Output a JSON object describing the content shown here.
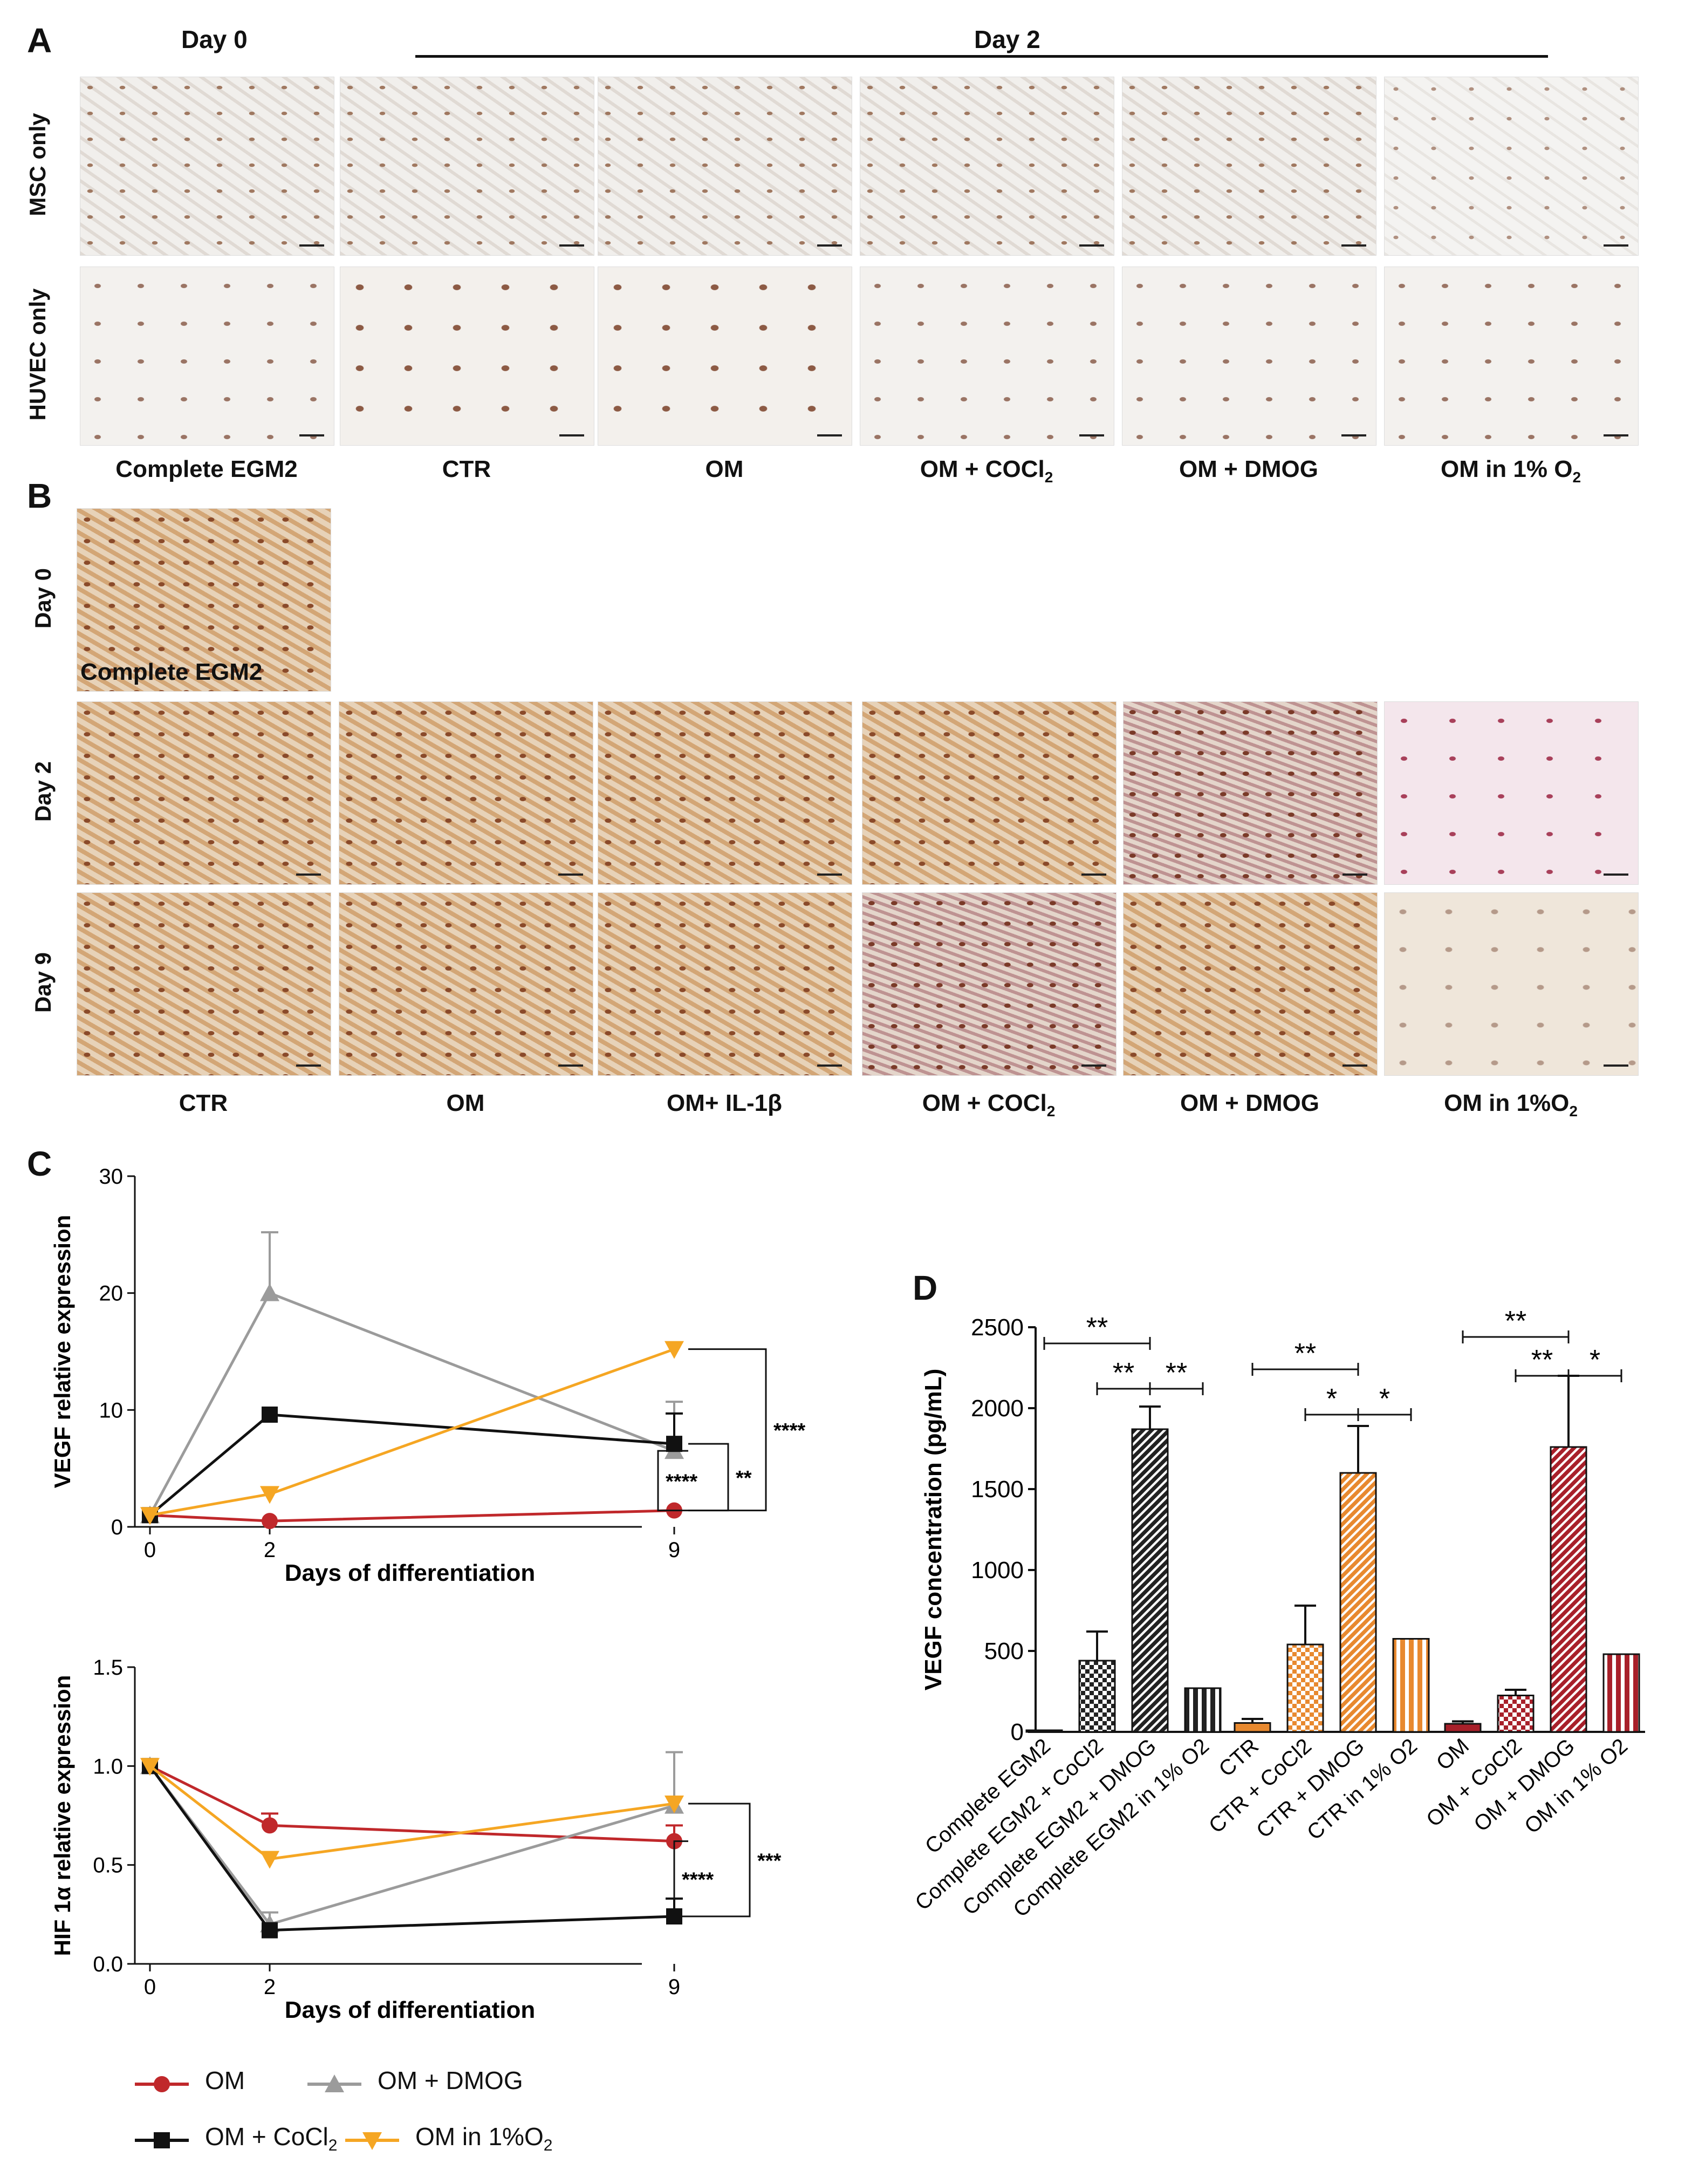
{
  "panel_a": {
    "label": "A",
    "day0_header": "Day 0",
    "day2_header": "Day 2",
    "rows": [
      "MSC only",
      "HUVEC only"
    ],
    "columns": [
      "Complete EGM2",
      "CTR",
      "OM",
      "OM + COCl",
      "OM + DMOG",
      "OM in 1% O"
    ],
    "col_subscripts": [
      "",
      "",
      "",
      "2",
      "",
      "2"
    ]
  },
  "panel_b": {
    "label": "B",
    "rows": [
      "Day 0",
      "Day 2",
      "Day 9"
    ],
    "day0_overlay": "Complete EGM2",
    "columns": [
      "CTR",
      "OM",
      "OM+ IL-1β",
      "OM + COCl",
      "OM + DMOG",
      "OM in 1%O"
    ],
    "col_subscripts": [
      "",
      "",
      "",
      "2",
      "",
      "2"
    ]
  },
  "colors": {
    "OM": "#c0282b",
    "OM + DMOG": "#9b9b9b",
    "OM + CoCl2": "#111111",
    "OM in 1%O2": "#f5a623"
  },
  "chart_data": [
    {
      "panel": "C",
      "type": "line",
      "xlabel": "Days  of  differentiation",
      "ylabel": "VEGF  relative  expression",
      "x": [
        0,
        2,
        9
      ],
      "ylim": [
        0,
        30
      ],
      "yticks": [
        0,
        10,
        20,
        30
      ],
      "series": [
        {
          "name": "OM",
          "values": [
            1.0,
            0.5,
            1.4
          ],
          "errors": [
            0,
            0,
            0
          ]
        },
        {
          "name": "OM + DMOG",
          "values": [
            1.0,
            20.0,
            6.5
          ],
          "errors": [
            0,
            5.2,
            4.2
          ]
        },
        {
          "name": "OM + CoCl2",
          "values": [
            1.0,
            9.6,
            7.1
          ],
          "errors": [
            0,
            0,
            2.6
          ]
        },
        {
          "name": "OM in 1%O2",
          "values": [
            1.0,
            2.8,
            15.2
          ],
          "errors": [
            0,
            0,
            0
          ]
        }
      ],
      "significance": [
        "****",
        "**",
        "****"
      ]
    },
    {
      "panel": "C",
      "type": "line",
      "xlabel": "Days  of  differentiation",
      "ylabel": "HIF 1α  relative  expression",
      "x": [
        0,
        2,
        9
      ],
      "ylim": [
        0,
        1.5
      ],
      "yticks": [
        0.0,
        0.5,
        1.0,
        1.5
      ],
      "series": [
        {
          "name": "OM",
          "values": [
            1.0,
            0.7,
            0.62
          ],
          "errors": [
            0,
            0.06,
            0.08
          ]
        },
        {
          "name": "OM + DMOG",
          "values": [
            1.0,
            0.2,
            0.8
          ],
          "errors": [
            0,
            0.06,
            0.27
          ]
        },
        {
          "name": "OM + CoCl2",
          "values": [
            1.0,
            0.17,
            0.24
          ],
          "errors": [
            0,
            0,
            0.09
          ]
        },
        {
          "name": "OM in 1%O2",
          "values": [
            1.0,
            0.53,
            0.81
          ],
          "errors": [
            0,
            0,
            0
          ]
        }
      ],
      "significance": [
        "****",
        "***"
      ]
    },
    {
      "panel": "D",
      "type": "bar",
      "ylabel": "VEGF concentration  (pg/mL)",
      "ylim": [
        0,
        2500
      ],
      "yticks": [
        0,
        500,
        1000,
        1500,
        2000,
        2500
      ],
      "categories": [
        "Complete EGM2",
        "Complete EGM2 + CoCl2",
        "Complete EGM2 + DMOG",
        "Complete EGM2 in 1% O2",
        "CTR",
        "CTR + CoCl2",
        "CTR + DMOG",
        "CTR in 1% O2",
        "OM",
        "OM + CoCl2",
        "OM + DMOG",
        "OM in 1% O2"
      ],
      "values": [
        10,
        440,
        1870,
        270,
        55,
        540,
        1600,
        575,
        50,
        225,
        1760,
        480
      ],
      "errors": [
        0,
        180,
        140,
        0,
        25,
        240,
        290,
        0,
        15,
        35,
        440,
        0
      ],
      "significance": [
        "**",
        "**",
        "**",
        "**",
        "*",
        "*",
        "**",
        "**",
        "*"
      ]
    }
  ],
  "panel_c_label": "C",
  "panel_d_label": "D",
  "legend": {
    "items": [
      "OM",
      "OM + DMOG",
      "OM + CoCl",
      "OM in 1%O"
    ],
    "subscripts": [
      "",
      "",
      "2",
      "2"
    ]
  }
}
